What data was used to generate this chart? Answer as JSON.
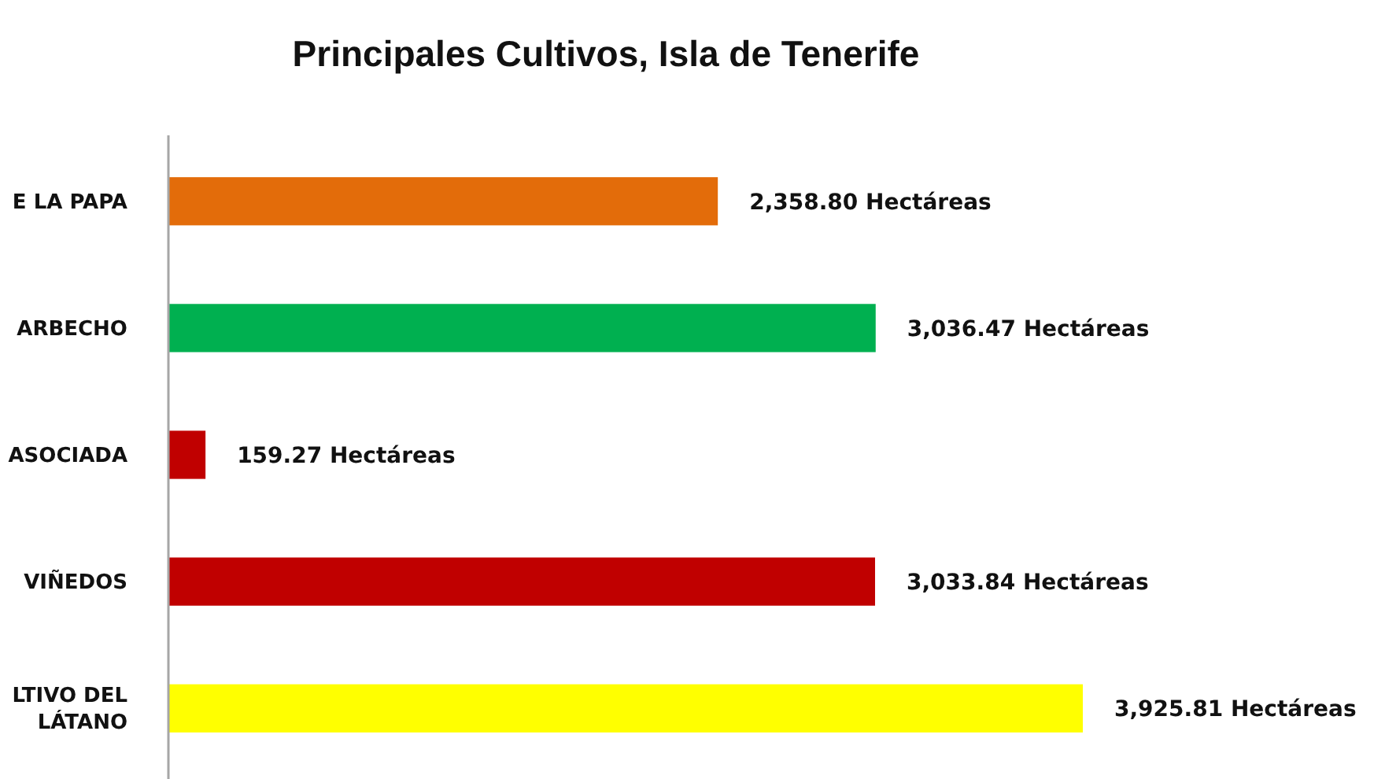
{
  "chart_data": {
    "type": "bar",
    "orientation": "horizontal",
    "title": "Principales Cultivos, Isla de Tenerife",
    "categories": [
      "E LA PAPA",
      "ARBECHO",
      "ASOCIADA",
      "VIÑEDOS",
      "LTIVO DEL LÁTANO"
    ],
    "values": [
      2358.8,
      3036.47,
      159.27,
      3033.84,
      3925.81
    ],
    "colors": [
      "#e36c0a",
      "#00b050",
      "#c00000",
      "#c00000",
      "#ffff00"
    ],
    "value_labels": [
      "2,358.80 Hectáreas",
      "3,036.47 Hectáreas",
      "159.27 Hectáreas",
      "3,033.84 Hectáreas",
      "3,925.81 Hectáreas"
    ]
  }
}
